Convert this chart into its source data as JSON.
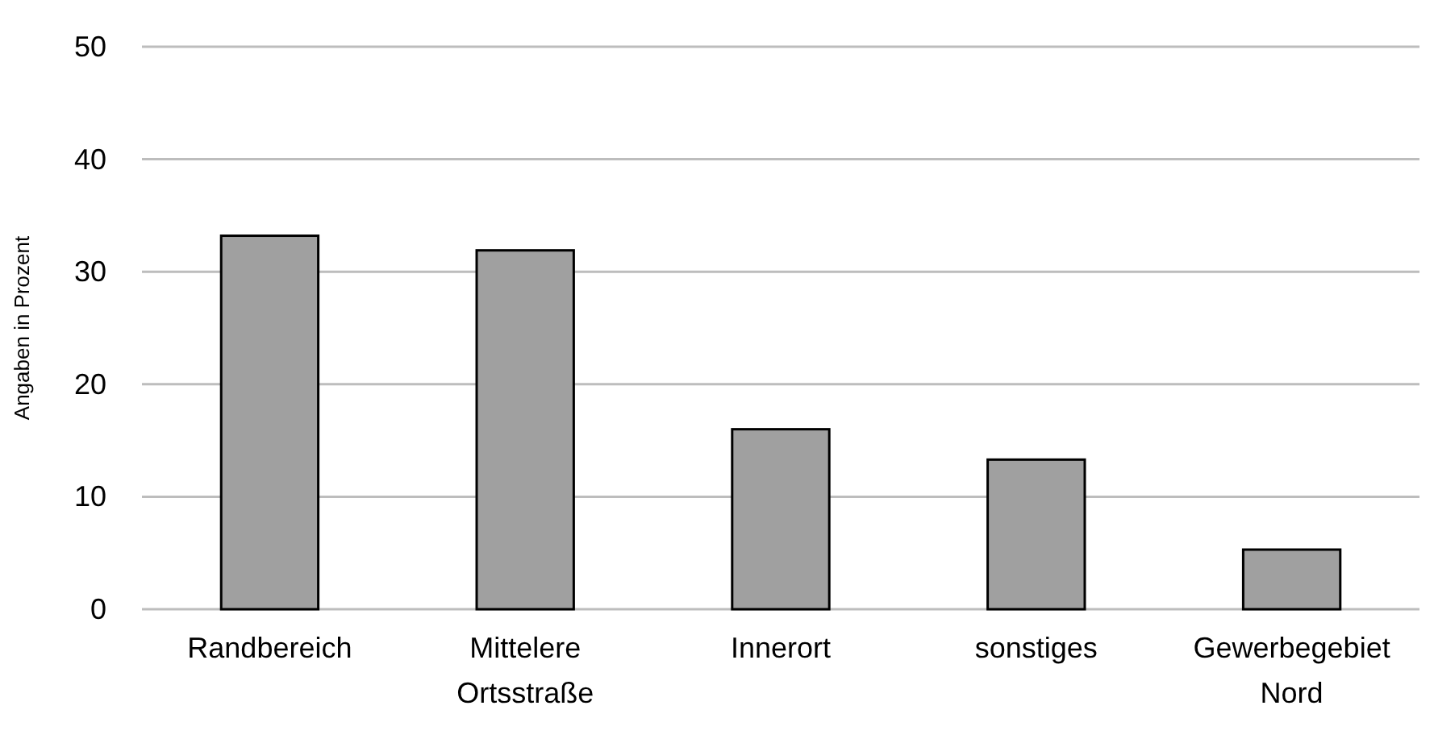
{
  "chart_data": {
    "type": "bar",
    "ylabel": "Angaben in Prozent",
    "categories": [
      "Randbereich",
      "Mittelere Ortsstraße",
      "Innerort",
      "sonstiges",
      "Gewerbegebiet Nord"
    ],
    "values": [
      33.2,
      31.9,
      16.0,
      13.3,
      5.3
    ],
    "color": "#a0a0a0",
    "ylim": [
      0,
      50
    ],
    "yticks": [
      0,
      10,
      20,
      30,
      40,
      50
    ],
    "grid": "y"
  }
}
